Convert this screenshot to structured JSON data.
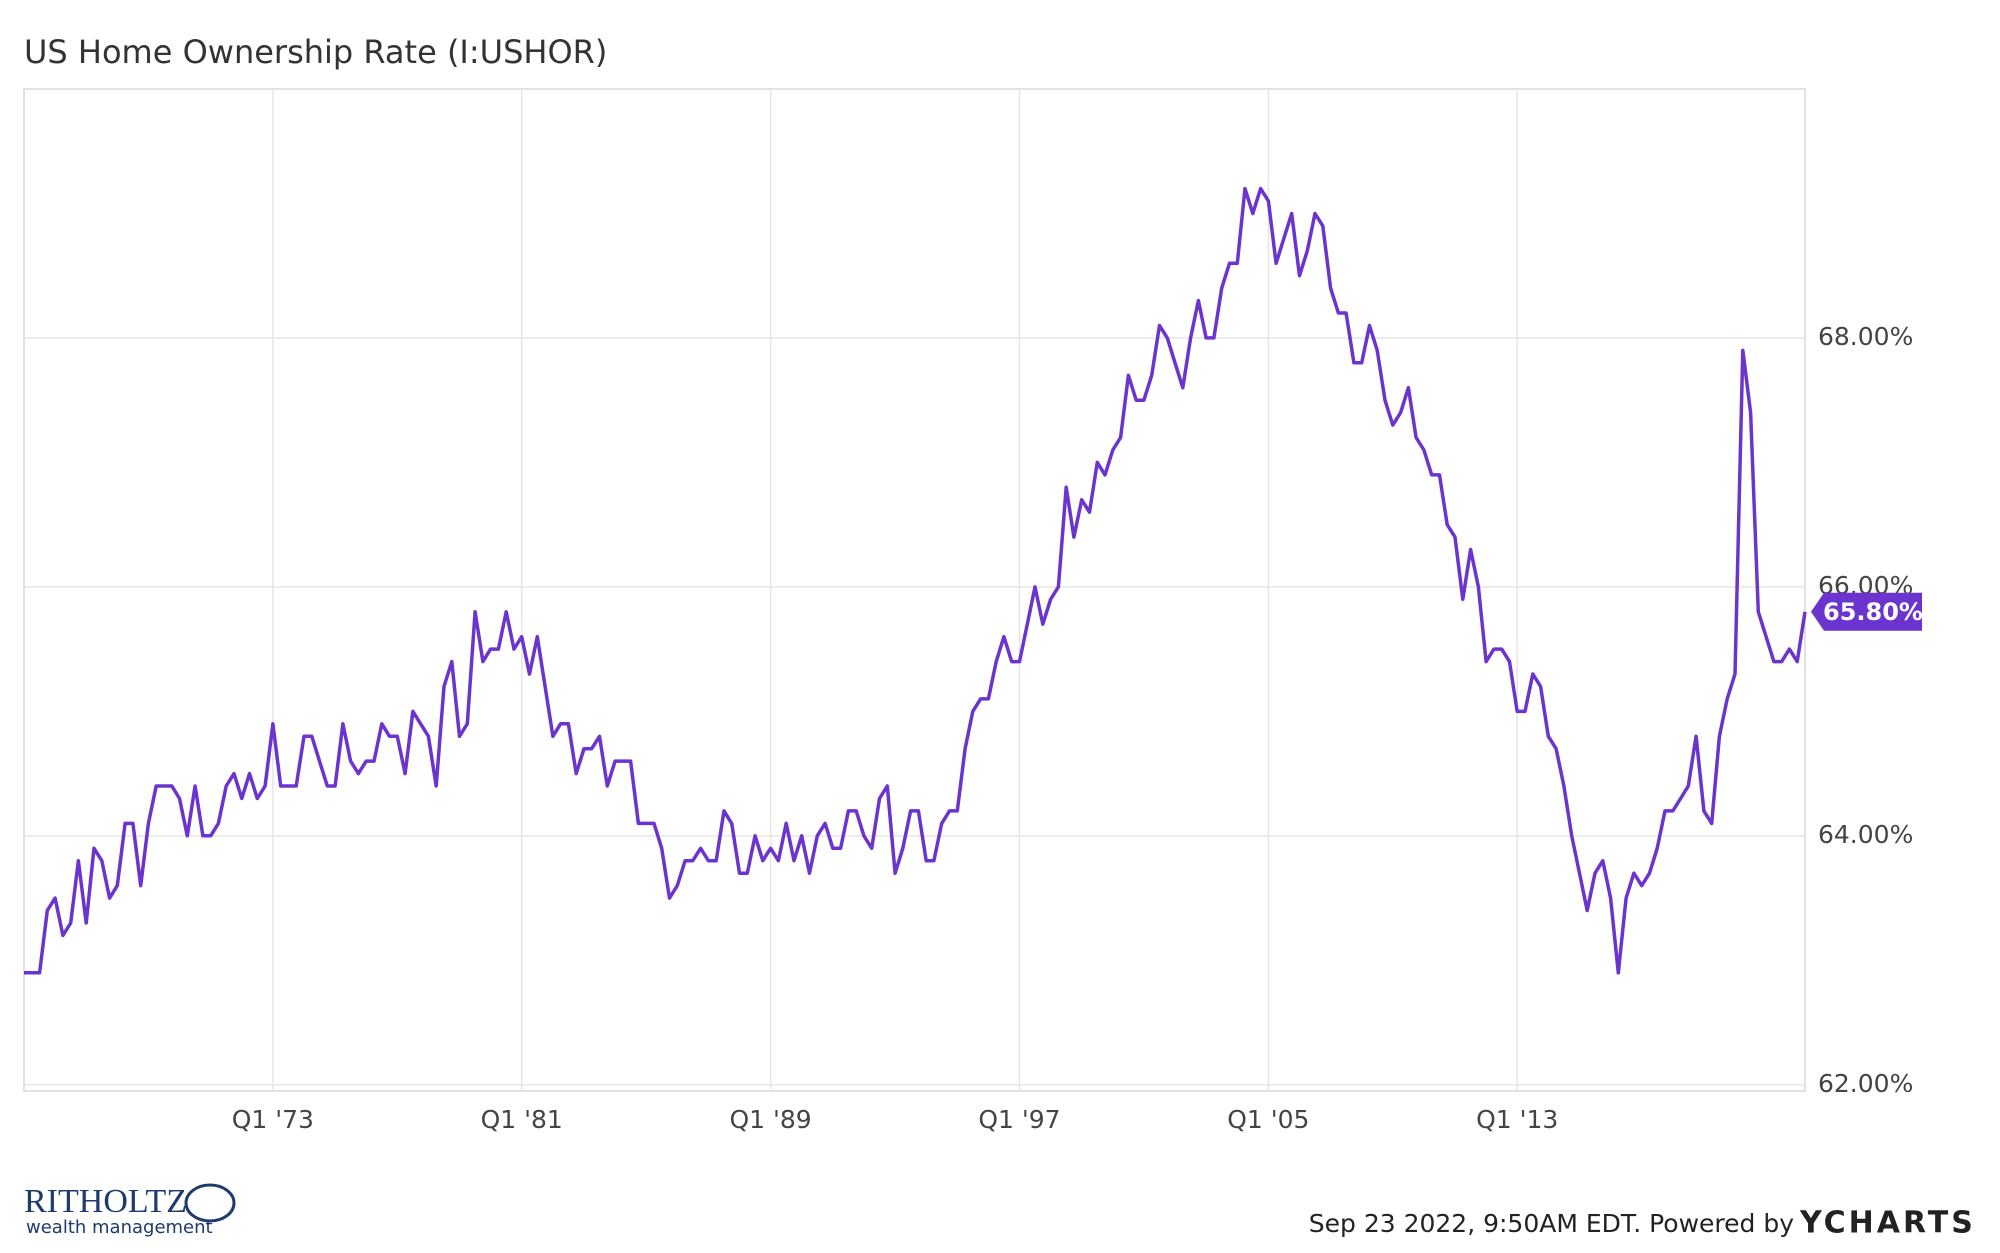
{
  "chart_data": {
    "type": "line",
    "title": "US Home Ownership Rate (I:USHOR)",
    "footer": "Sep 23 2022, 9:50AM EDT. Powered by",
    "brand": "YCHARTS",
    "logo_name": "RITHOLTZ",
    "logo_sub": "wealth management",
    "x": [
      1965,
      1965.25,
      1965.5,
      1965.75,
      1966,
      1966.25,
      1966.5,
      1966.75,
      1967,
      1967.25,
      1967.5,
      1967.75,
      1968,
      1968.25,
      1968.5,
      1968.75,
      1969,
      1969.25,
      1969.5,
      1969.75,
      1970,
      1970.25,
      1970.5,
      1970.75,
      1971,
      1971.25,
      1971.5,
      1971.75,
      1972,
      1972.25,
      1972.5,
      1972.75,
      1973,
      1973.25,
      1973.5,
      1973.75,
      1974,
      1974.25,
      1974.5,
      1974.75,
      1975,
      1975.25,
      1975.5,
      1975.75,
      1976,
      1976.25,
      1976.5,
      1976.75,
      1977,
      1977.25,
      1977.5,
      1977.75,
      1978,
      1978.25,
      1978.5,
      1978.75,
      1979,
      1979.25,
      1979.5,
      1979.75,
      1980,
      1980.25,
      1980.5,
      1980.75,
      1981,
      1981.25,
      1981.5,
      1981.75,
      1982,
      1982.25,
      1982.5,
      1982.75,
      1983,
      1983.25,
      1983.5,
      1983.75,
      1984,
      1984.25,
      1984.5,
      1984.75,
      1985,
      1985.25,
      1985.5,
      1985.75,
      1986,
      1986.25,
      1986.5,
      1986.75,
      1987,
      1987.25,
      1987.5,
      1987.75,
      1988,
      1988.25,
      1988.5,
      1988.75,
      1989,
      1989.25,
      1989.5,
      1989.75,
      1990,
      1990.25,
      1990.5,
      1990.75,
      1991,
      1991.25,
      1991.5,
      1991.75,
      1992,
      1992.25,
      1992.5,
      1992.75,
      1993,
      1993.25,
      1993.5,
      1993.75,
      1994,
      1994.25,
      1994.5,
      1994.75,
      1995,
      1995.25,
      1995.5,
      1995.75,
      1996,
      1996.25,
      1996.5,
      1996.75,
      1997,
      1997.25,
      1997.5,
      1997.75,
      1998,
      1998.25,
      1998.5,
      1998.75,
      1999,
      1999.25,
      1999.5,
      1999.75,
      2000,
      2000.25,
      2000.5,
      2000.75,
      2001,
      2001.25,
      2001.5,
      2001.75,
      2002,
      2002.25,
      2002.5,
      2002.75,
      2003,
      2003.25,
      2003.5,
      2003.75,
      2004,
      2004.25,
      2004.5,
      2004.75,
      2005,
      2005.25,
      2005.5,
      2005.75,
      2006,
      2006.25,
      2006.5,
      2006.75,
      2007,
      2007.25,
      2007.5,
      2007.75,
      2008,
      2008.25,
      2008.5,
      2008.75,
      2009,
      2009.25,
      2009.5,
      2009.75,
      2010,
      2010.25,
      2010.5,
      2010.75,
      2011,
      2011.25,
      2011.5,
      2011.75,
      2012,
      2012.25,
      2012.5,
      2012.75,
      2013,
      2013.25,
      2013.5,
      2013.75,
      2014,
      2014.25,
      2014.5,
      2014.75,
      2015,
      2015.25,
      2015.5,
      2015.75,
      2016,
      2016.25,
      2016.5,
      2016.75,
      2017,
      2017.25,
      2017.5,
      2017.75,
      2018,
      2018.25,
      2018.5,
      2018.75,
      2019,
      2019.25,
      2019.5,
      2019.75,
      2020,
      2020.25,
      2020.5,
      2020.75,
      2021,
      2021.25,
      2021.5,
      2021.75,
      2022,
      2022.25
    ],
    "series": [
      {
        "name": "US Home Ownership Rate",
        "color": "#6c34cf",
        "last_label": "65.80%",
        "values": [
          62.9,
          62.9,
          62.9,
          63.4,
          63.5,
          63.2,
          63.3,
          63.8,
          63.3,
          63.9,
          63.8,
          63.5,
          63.6,
          64.1,
          64.1,
          63.6,
          64.1,
          64.4,
          64.4,
          64.4,
          64.3,
          64.0,
          64.4,
          64.0,
          64.0,
          64.1,
          64.4,
          64.5,
          64.3,
          64.5,
          64.3,
          64.4,
          64.9,
          64.4,
          64.4,
          64.4,
          64.8,
          64.8,
          64.6,
          64.4,
          64.4,
          64.9,
          64.6,
          64.5,
          64.6,
          64.6,
          64.9,
          64.8,
          64.8,
          64.5,
          65.0,
          64.9,
          64.8,
          64.4,
          65.2,
          65.4,
          64.8,
          64.9,
          65.8,
          65.4,
          65.5,
          65.5,
          65.8,
          65.5,
          65.6,
          65.3,
          65.6,
          65.2,
          64.8,
          64.9,
          64.9,
          64.5,
          64.7,
          64.7,
          64.8,
          64.4,
          64.6,
          64.6,
          64.6,
          64.1,
          64.1,
          64.1,
          63.9,
          63.5,
          63.6,
          63.8,
          63.8,
          63.9,
          63.8,
          63.8,
          64.2,
          64.1,
          63.7,
          63.7,
          64.0,
          63.8,
          63.9,
          63.8,
          64.1,
          63.8,
          64.0,
          63.7,
          64.0,
          64.1,
          63.9,
          63.9,
          64.2,
          64.2,
          64.0,
          63.9,
          64.3,
          64.4,
          63.7,
          63.9,
          64.2,
          64.2,
          63.8,
          63.8,
          64.1,
          64.2,
          64.2,
          64.7,
          65.0,
          65.1,
          65.1,
          65.4,
          65.6,
          65.4,
          65.4,
          65.7,
          66.0,
          65.7,
          65.9,
          66.0,
          66.8,
          66.4,
          66.7,
          66.6,
          67.0,
          66.9,
          67.1,
          67.2,
          67.7,
          67.5,
          67.5,
          67.7,
          68.1,
          68.0,
          67.8,
          67.6,
          68.0,
          68.3,
          68.0,
          68.0,
          68.4,
          68.6,
          68.6,
          69.2,
          69.0,
          69.2,
          69.1,
          68.6,
          68.8,
          69.0,
          68.5,
          68.7,
          69.0,
          68.9,
          68.4,
          68.2,
          68.2,
          67.8,
          67.8,
          68.1,
          67.9,
          67.5,
          67.3,
          67.4,
          67.6,
          67.2,
          67.1,
          66.9,
          66.9,
          66.5,
          66.4,
          65.9,
          66.3,
          66.0,
          65.4,
          65.5,
          65.5,
          65.4,
          65.0,
          65.0,
          65.3,
          65.2,
          64.8,
          64.7,
          64.4,
          64.0,
          63.7,
          63.4,
          63.7,
          63.8,
          63.5,
          62.9,
          63.5,
          63.7,
          63.6,
          63.7,
          63.9,
          64.2,
          64.2,
          64.3,
          64.4,
          64.8,
          64.2,
          64.1,
          64.8,
          65.1,
          65.3,
          67.9,
          67.4,
          65.8,
          65.6,
          65.4,
          65.4,
          65.5,
          65.4,
          65.8
        ]
      }
    ],
    "xlim": [
      1965,
      2022.25
    ],
    "xticks": [
      {
        "value": 1973,
        "label": "Q1 '73"
      },
      {
        "value": 1981,
        "label": "Q1 '81"
      },
      {
        "value": 1989,
        "label": "Q1 '89"
      },
      {
        "value": 1997,
        "label": "Q1 '97"
      },
      {
        "value": 2005,
        "label": "Q1 '05"
      },
      {
        "value": 2013,
        "label": "Q1 '13"
      }
    ],
    "ylim": [
      61.95,
      70
    ],
    "yticks": [
      {
        "value": 62,
        "label": "62.00%"
      },
      {
        "value": 64,
        "label": "64.00%"
      },
      {
        "value": 66,
        "label": "66.00%"
      },
      {
        "value": 68,
        "label": "68.00%"
      }
    ],
    "grid": true
  }
}
